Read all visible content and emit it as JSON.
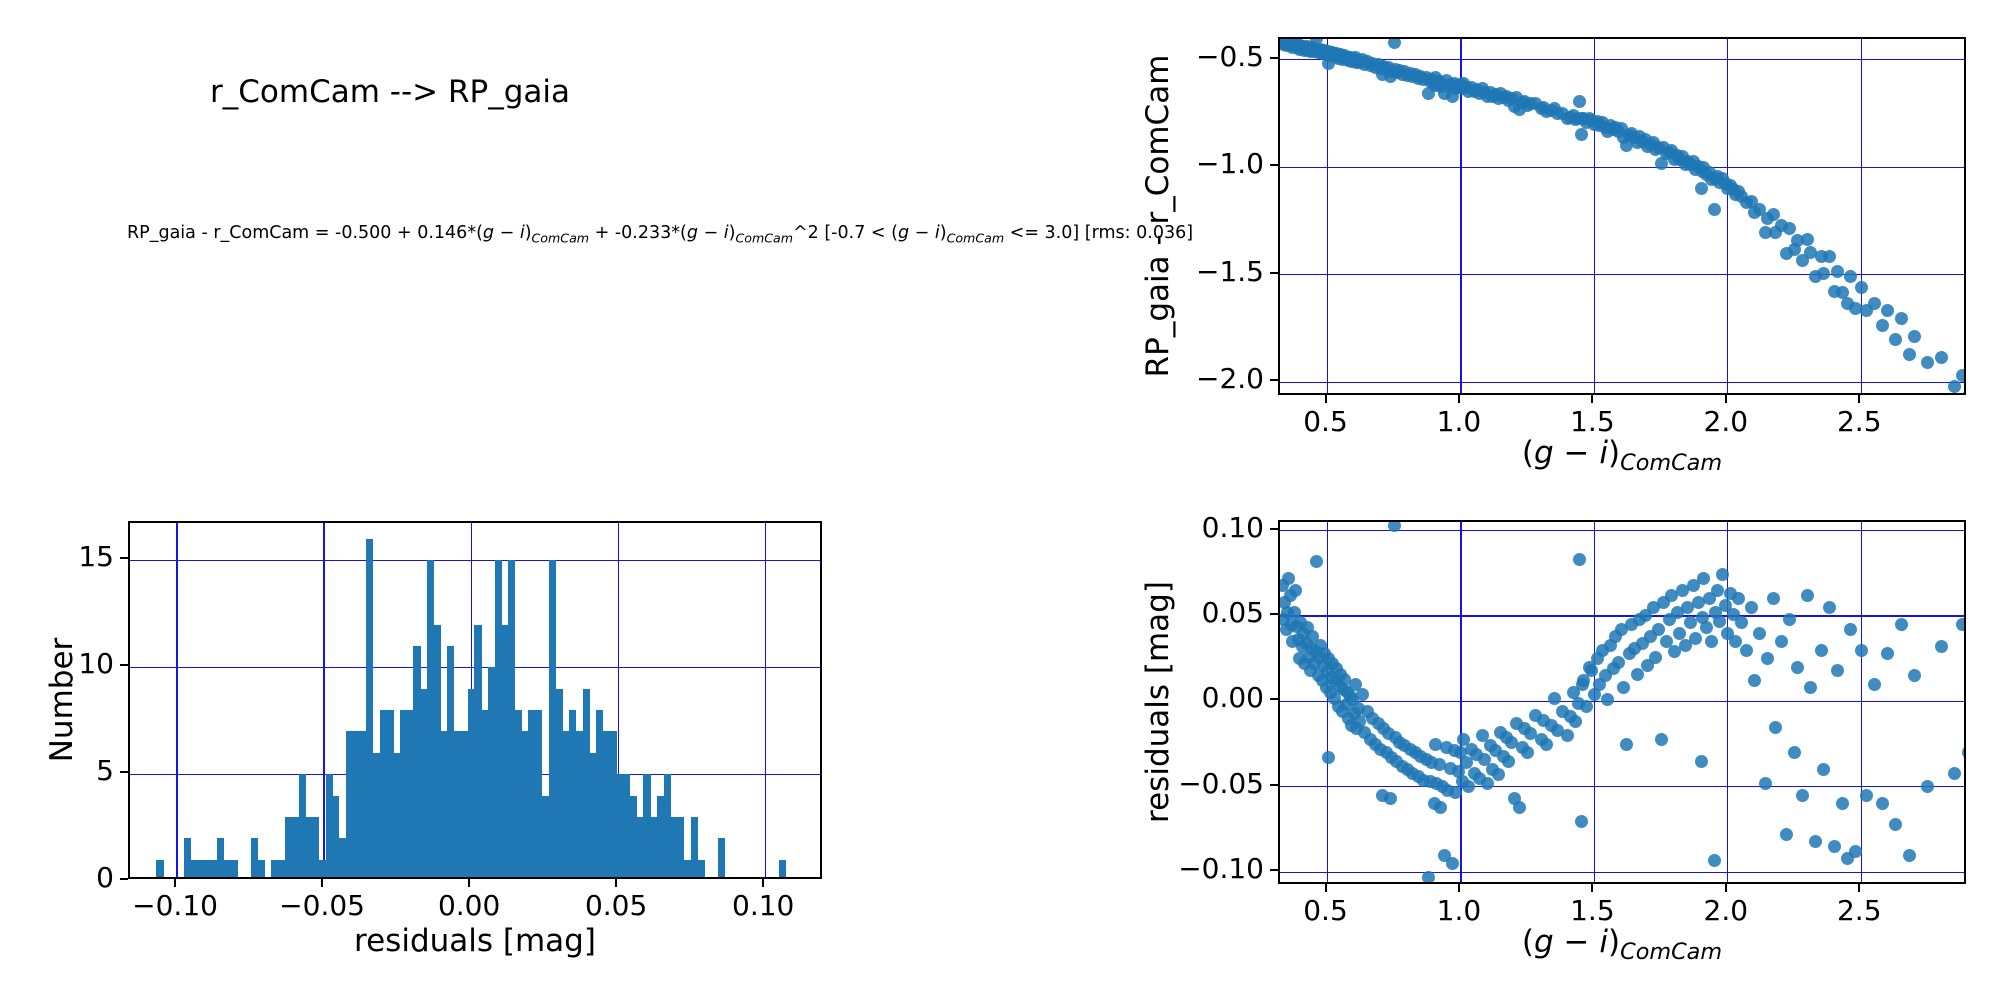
{
  "header": {
    "title": "r_ComCam --> RP_gaia",
    "formula_plain": "RP_gaia - r_ComCam = -0.500 + 0.146*(g − i)_ComCam + -0.233*(g − i)_ComCam^2  [-0.7 < (g − i)_ComCam <= 3.0] [rms: 0.036]",
    "formula_segments": [
      {
        "t": "RP_gaia - r_ComCam = -0.500 + 0.146*("
      },
      {
        "t": "g",
        "i": true
      },
      {
        "t": " − "
      },
      {
        "t": "i",
        "i": true
      },
      {
        "t": ")"
      },
      {
        "t": "ComCam",
        "sub": true,
        "i": true
      },
      {
        "t": " + -0.233*("
      },
      {
        "t": "g",
        "i": true
      },
      {
        "t": " − "
      },
      {
        "t": "i",
        "i": true
      },
      {
        "t": ")"
      },
      {
        "t": "ComCam",
        "sub": true,
        "i": true
      },
      {
        "t": "^2  [-0.7 < ("
      },
      {
        "t": "g",
        "i": true
      },
      {
        "t": " − "
      },
      {
        "t": "i",
        "i": true
      },
      {
        "t": ")"
      },
      {
        "t": "ComCam",
        "sub": true,
        "i": true
      },
      {
        "t": " <= 3.0] [rms: 0.036]"
      }
    ]
  },
  "colors": {
    "marker": "#1f77b4",
    "bar": "#1f77b4",
    "grid": "#1414e8",
    "axis": "#000000"
  },
  "xlabel_segments": [
    {
      "t": "("
    },
    {
      "t": "g",
      "i": true
    },
    {
      "t": " − "
    },
    {
      "t": "i",
      "i": true
    },
    {
      "t": ")"
    },
    {
      "t": "ComCam",
      "sub": true,
      "i": true
    }
  ],
  "points": {
    "comment": "shared stars: top scatter y = c0 + c1*x + c2*x^2 + residual; bottom scatter y = residual",
    "x": [
      0.33,
      0.335,
      0.34,
      0.345,
      0.35,
      0.355,
      0.36,
      0.365,
      0.37,
      0.375,
      0.38,
      0.385,
      0.39,
      0.395,
      0.4,
      0.405,
      0.41,
      0.415,
      0.42,
      0.425,
      0.43,
      0.435,
      0.44,
      0.445,
      0.45,
      0.455,
      0.46,
      0.465,
      0.47,
      0.475,
      0.48,
      0.485,
      0.49,
      0.495,
      0.5,
      0.503,
      0.505,
      0.51,
      0.515,
      0.52,
      0.525,
      0.53,
      0.535,
      0.54,
      0.545,
      0.55,
      0.555,
      0.56,
      0.565,
      0.57,
      0.575,
      0.58,
      0.585,
      0.59,
      0.595,
      0.6,
      0.605,
      0.61,
      0.615,
      0.62,
      0.63,
      0.64,
      0.65,
      0.66,
      0.67,
      0.68,
      0.69,
      0.7,
      0.705,
      0.71,
      0.72,
      0.73,
      0.735,
      0.74,
      0.75,
      0.755,
      0.76,
      0.77,
      0.78,
      0.79,
      0.8,
      0.81,
      0.82,
      0.83,
      0.84,
      0.85,
      0.86,
      0.87,
      0.88,
      0.885,
      0.89,
      0.9,
      0.905,
      0.91,
      0.92,
      0.925,
      0.93,
      0.94,
      0.945,
      0.95,
      0.96,
      0.97,
      0.975,
      0.98,
      0.99,
      1.0,
      1.005,
      1.01,
      1.02,
      1.03,
      1.04,
      1.05,
      1.06,
      1.07,
      1.08,
      1.09,
      1.1,
      1.11,
      1.12,
      1.13,
      1.14,
      1.15,
      1.16,
      1.17,
      1.18,
      1.19,
      1.2,
      1.21,
      1.22,
      1.23,
      1.24,
      1.25,
      1.26,
      1.28,
      1.3,
      1.31,
      1.32,
      1.34,
      1.35,
      1.36,
      1.38,
      1.4,
      1.41,
      1.42,
      1.43,
      1.44,
      1.445,
      1.45,
      1.455,
      1.46,
      1.47,
      1.48,
      1.49,
      1.5,
      1.51,
      1.52,
      1.53,
      1.54,
      1.55,
      1.56,
      1.57,
      1.58,
      1.59,
      1.6,
      1.61,
      1.62,
      1.63,
      1.64,
      1.65,
      1.66,
      1.67,
      1.68,
      1.69,
      1.7,
      1.71,
      1.72,
      1.73,
      1.74,
      1.75,
      1.76,
      1.77,
      1.78,
      1.79,
      1.8,
      1.81,
      1.82,
      1.83,
      1.84,
      1.85,
      1.86,
      1.87,
      1.88,
      1.89,
      1.9,
      1.905,
      1.91,
      1.92,
      1.93,
      1.94,
      1.95,
      1.955,
      1.96,
      1.97,
      1.98,
      1.99,
      2.0,
      2.01,
      2.02,
      2.03,
      2.04,
      2.05,
      2.07,
      2.09,
      2.1,
      2.12,
      2.14,
      2.15,
      2.17,
      2.18,
      2.2,
      2.22,
      2.23,
      2.25,
      2.26,
      2.28,
      2.3,
      2.31,
      2.33,
      2.35,
      2.36,
      2.38,
      2.4,
      2.41,
      2.43,
      2.45,
      2.46,
      2.48,
      2.5,
      2.52,
      2.55,
      2.58,
      2.6,
      2.63,
      2.65,
      2.68,
      2.7,
      2.75,
      2.8,
      2.85,
      2.88,
      2.9
    ],
    "residuals": [
      0.068,
      0.048,
      0.058,
      0.042,
      0.052,
      0.072,
      0.062,
      0.045,
      0.035,
      0.052,
      0.065,
      0.044,
      0.036,
      0.025,
      0.046,
      0.032,
      0.04,
      0.022,
      0.034,
      0.043,
      0.026,
      0.018,
      0.031,
      0.038,
      0.022,
      0.029,
      0.082,
      0.015,
      0.026,
      0.033,
      0.012,
      0.021,
      0.028,
      0.008,
      0.018,
      -0.033,
      0.025,
      0.005,
      0.014,
      0.022,
      0.002,
      0.012,
      0.019,
      -0.003,
      0.009,
      0.016,
      -0.006,
      0.007,
      0.013,
      -0.002,
      0.005,
      -0.01,
      0.003,
      -0.014,
      0.001,
      -0.007,
      0.01,
      -0.016,
      -0.004,
      -0.012,
      0.004,
      -0.018,
      -0.006,
      -0.022,
      -0.01,
      -0.025,
      -0.013,
      -0.028,
      -0.055,
      -0.016,
      -0.03,
      -0.019,
      -0.057,
      -0.033,
      0.103,
      -0.021,
      -0.035,
      -0.024,
      -0.038,
      -0.026,
      -0.04,
      -0.028,
      -0.042,
      -0.03,
      -0.044,
      -0.032,
      -0.046,
      -0.034,
      -0.103,
      -0.047,
      -0.036,
      -0.06,
      -0.025,
      -0.048,
      -0.037,
      -0.062,
      -0.05,
      -0.09,
      -0.027,
      -0.052,
      -0.039,
      -0.095,
      -0.029,
      -0.053,
      -0.041,
      -0.03,
      -0.047,
      -0.022,
      -0.036,
      -0.05,
      -0.028,
      -0.042,
      -0.031,
      -0.045,
      -0.02,
      -0.034,
      -0.048,
      -0.026,
      -0.04,
      -0.029,
      -0.043,
      -0.018,
      -0.032,
      -0.021,
      -0.035,
      -0.024,
      -0.057,
      -0.013,
      -0.062,
      -0.027,
      -0.016,
      -0.03,
      -0.019,
      -0.008,
      -0.022,
      -0.011,
      -0.025,
      -0.014,
      0.002,
      -0.017,
      -0.006,
      -0.02,
      -0.009,
      0.005,
      -0.012,
      -0.001,
      0.083,
      -0.07,
      0.01,
      0.012,
      -0.003,
      0.02,
      0.018,
      0.004,
      0.025,
      0.01,
      0.03,
      0.015,
      0.001,
      0.033,
      0.019,
      0.038,
      0.023,
      0.042,
      0.008,
      -0.025,
      0.028,
      0.045,
      0.031,
      0.016,
      0.048,
      0.034,
      0.05,
      0.021,
      0.038,
      0.055,
      0.026,
      0.042,
      -0.022,
      0.058,
      0.035,
      0.048,
      0.062,
      0.029,
      0.052,
      0.04,
      0.065,
      0.033,
      0.055,
      0.046,
      0.068,
      0.037,
      0.058,
      -0.035,
      0.049,
      0.072,
      0.043,
      0.06,
      0.035,
      -0.093,
      0.052,
      0.065,
      0.047,
      0.074,
      0.056,
      0.04,
      0.063,
      0.051,
      0.035,
      0.06,
      0.046,
      0.03,
      0.055,
      0.012,
      0.04,
      -0.048,
      0.025,
      0.06,
      -0.015,
      0.035,
      -0.078,
      0.048,
      -0.03,
      0.02,
      -0.055,
      0.062,
      0.008,
      -0.082,
      0.03,
      -0.04,
      0.055,
      -0.085,
      0.018,
      -0.06,
      -0.092,
      0.042,
      -0.088,
      0.03,
      -0.055,
      0.01,
      -0.06,
      0.028,
      -0.072,
      0.045,
      -0.09,
      0.015,
      -0.05,
      0.032,
      -0.042,
      0.045,
      -0.03
    ]
  },
  "chart_data": [
    {
      "id": "color-curve",
      "type": "scatter",
      "title": "",
      "xlabel_plain": "(g − i)_ComCam",
      "ylabel": "RP_gaia - r_ComCam",
      "xlim": [
        0.322,
        2.9
      ],
      "ylim": [
        -2.069,
        -0.403
      ],
      "grid": true,
      "legend": "none",
      "xticks": [
        0.5,
        1.0,
        1.5,
        2.0,
        2.5
      ],
      "xtick_labels": [
        "0.5",
        "1.0",
        "1.5",
        "2.0",
        "2.5"
      ],
      "yticks": [
        -0.5,
        -1.0,
        -1.5,
        -2.0
      ],
      "ytick_labels": [
        "−0.5",
        "−1.0",
        "−1.5",
        "−2.0"
      ],
      "fit_coefficients": {
        "c0": -0.5,
        "c1": 0.146,
        "c2": -0.233
      },
      "y_rule": "c0 + c1*x + c2*x^2 + residual (uses points.x, points.residuals)"
    },
    {
      "id": "residuals-scatter",
      "type": "scatter",
      "title": "",
      "xlabel_plain": "(g − i)_ComCam",
      "ylabel": "residuals [mag]",
      "xlim": [
        0.322,
        2.9
      ],
      "ylim": [
        -0.108,
        0.105
      ],
      "grid": true,
      "legend": "none",
      "xticks": [
        0.5,
        1.0,
        1.5,
        2.0,
        2.5
      ],
      "xtick_labels": [
        "0.5",
        "1.0",
        "1.5",
        "2.0",
        "2.5"
      ],
      "yticks": [
        0.1,
        0.05,
        0.0,
        -0.05,
        -0.1
      ],
      "ytick_labels": [
        "0.10",
        "0.05",
        "0.00",
        "−0.05",
        "−0.10"
      ],
      "y_rule": "residual (uses points.x, points.residuals)"
    },
    {
      "id": "residuals-histogram",
      "type": "bar",
      "title": "",
      "xlabel_plain": "residuals [mag]",
      "ylabel": "Number",
      "xlim": [
        -0.116,
        0.12
      ],
      "ylim": [
        0,
        16.75
      ],
      "grid": true,
      "legend": "none",
      "xticks": [
        -0.1,
        -0.05,
        0.0,
        0.05,
        0.1
      ],
      "xtick_labels": [
        "−0.10",
        "−0.05",
        "0.00",
        "0.05",
        "0.10"
      ],
      "yticks": [
        0,
        5,
        10,
        15
      ],
      "ytick_labels": [
        "0",
        "5",
        "10",
        "15"
      ],
      "bin_start": -0.107,
      "bin_width": 0.0023,
      "counts": [
        1,
        0,
        0,
        0,
        2,
        1,
        1,
        1,
        1,
        2,
        1,
        1,
        0,
        0,
        2,
        1,
        0,
        1,
        1,
        3,
        3,
        5,
        3,
        3,
        1,
        5,
        4,
        2,
        7,
        7,
        7,
        16,
        6,
        8,
        8,
        6,
        8,
        8,
        11,
        9,
        15,
        12,
        7,
        11,
        7,
        7,
        9,
        12,
        8,
        10,
        15,
        12,
        15,
        8,
        7,
        8,
        8,
        4,
        15,
        9,
        7,
        8,
        7,
        9,
        6,
        8,
        7,
        7,
        5,
        5,
        4,
        3,
        5,
        3,
        4,
        5,
        3,
        3,
        1,
        3,
        1,
        0,
        0,
        2,
        0,
        0,
        0,
        0,
        0,
        0,
        0,
        0,
        1
      ]
    }
  ]
}
